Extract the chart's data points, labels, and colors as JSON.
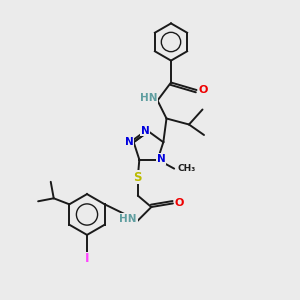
{
  "background_color": "#ebebeb",
  "bond_color": "#1a1a1a",
  "atom_colors": {
    "N": "#0000dd",
    "O": "#ee0000",
    "S": "#bbbb00",
    "I": "#ff44ff",
    "HN": "#5f9ea0",
    "C": "#1a1a1a"
  },
  "figsize": [
    3.0,
    3.0
  ],
  "dpi": 100
}
